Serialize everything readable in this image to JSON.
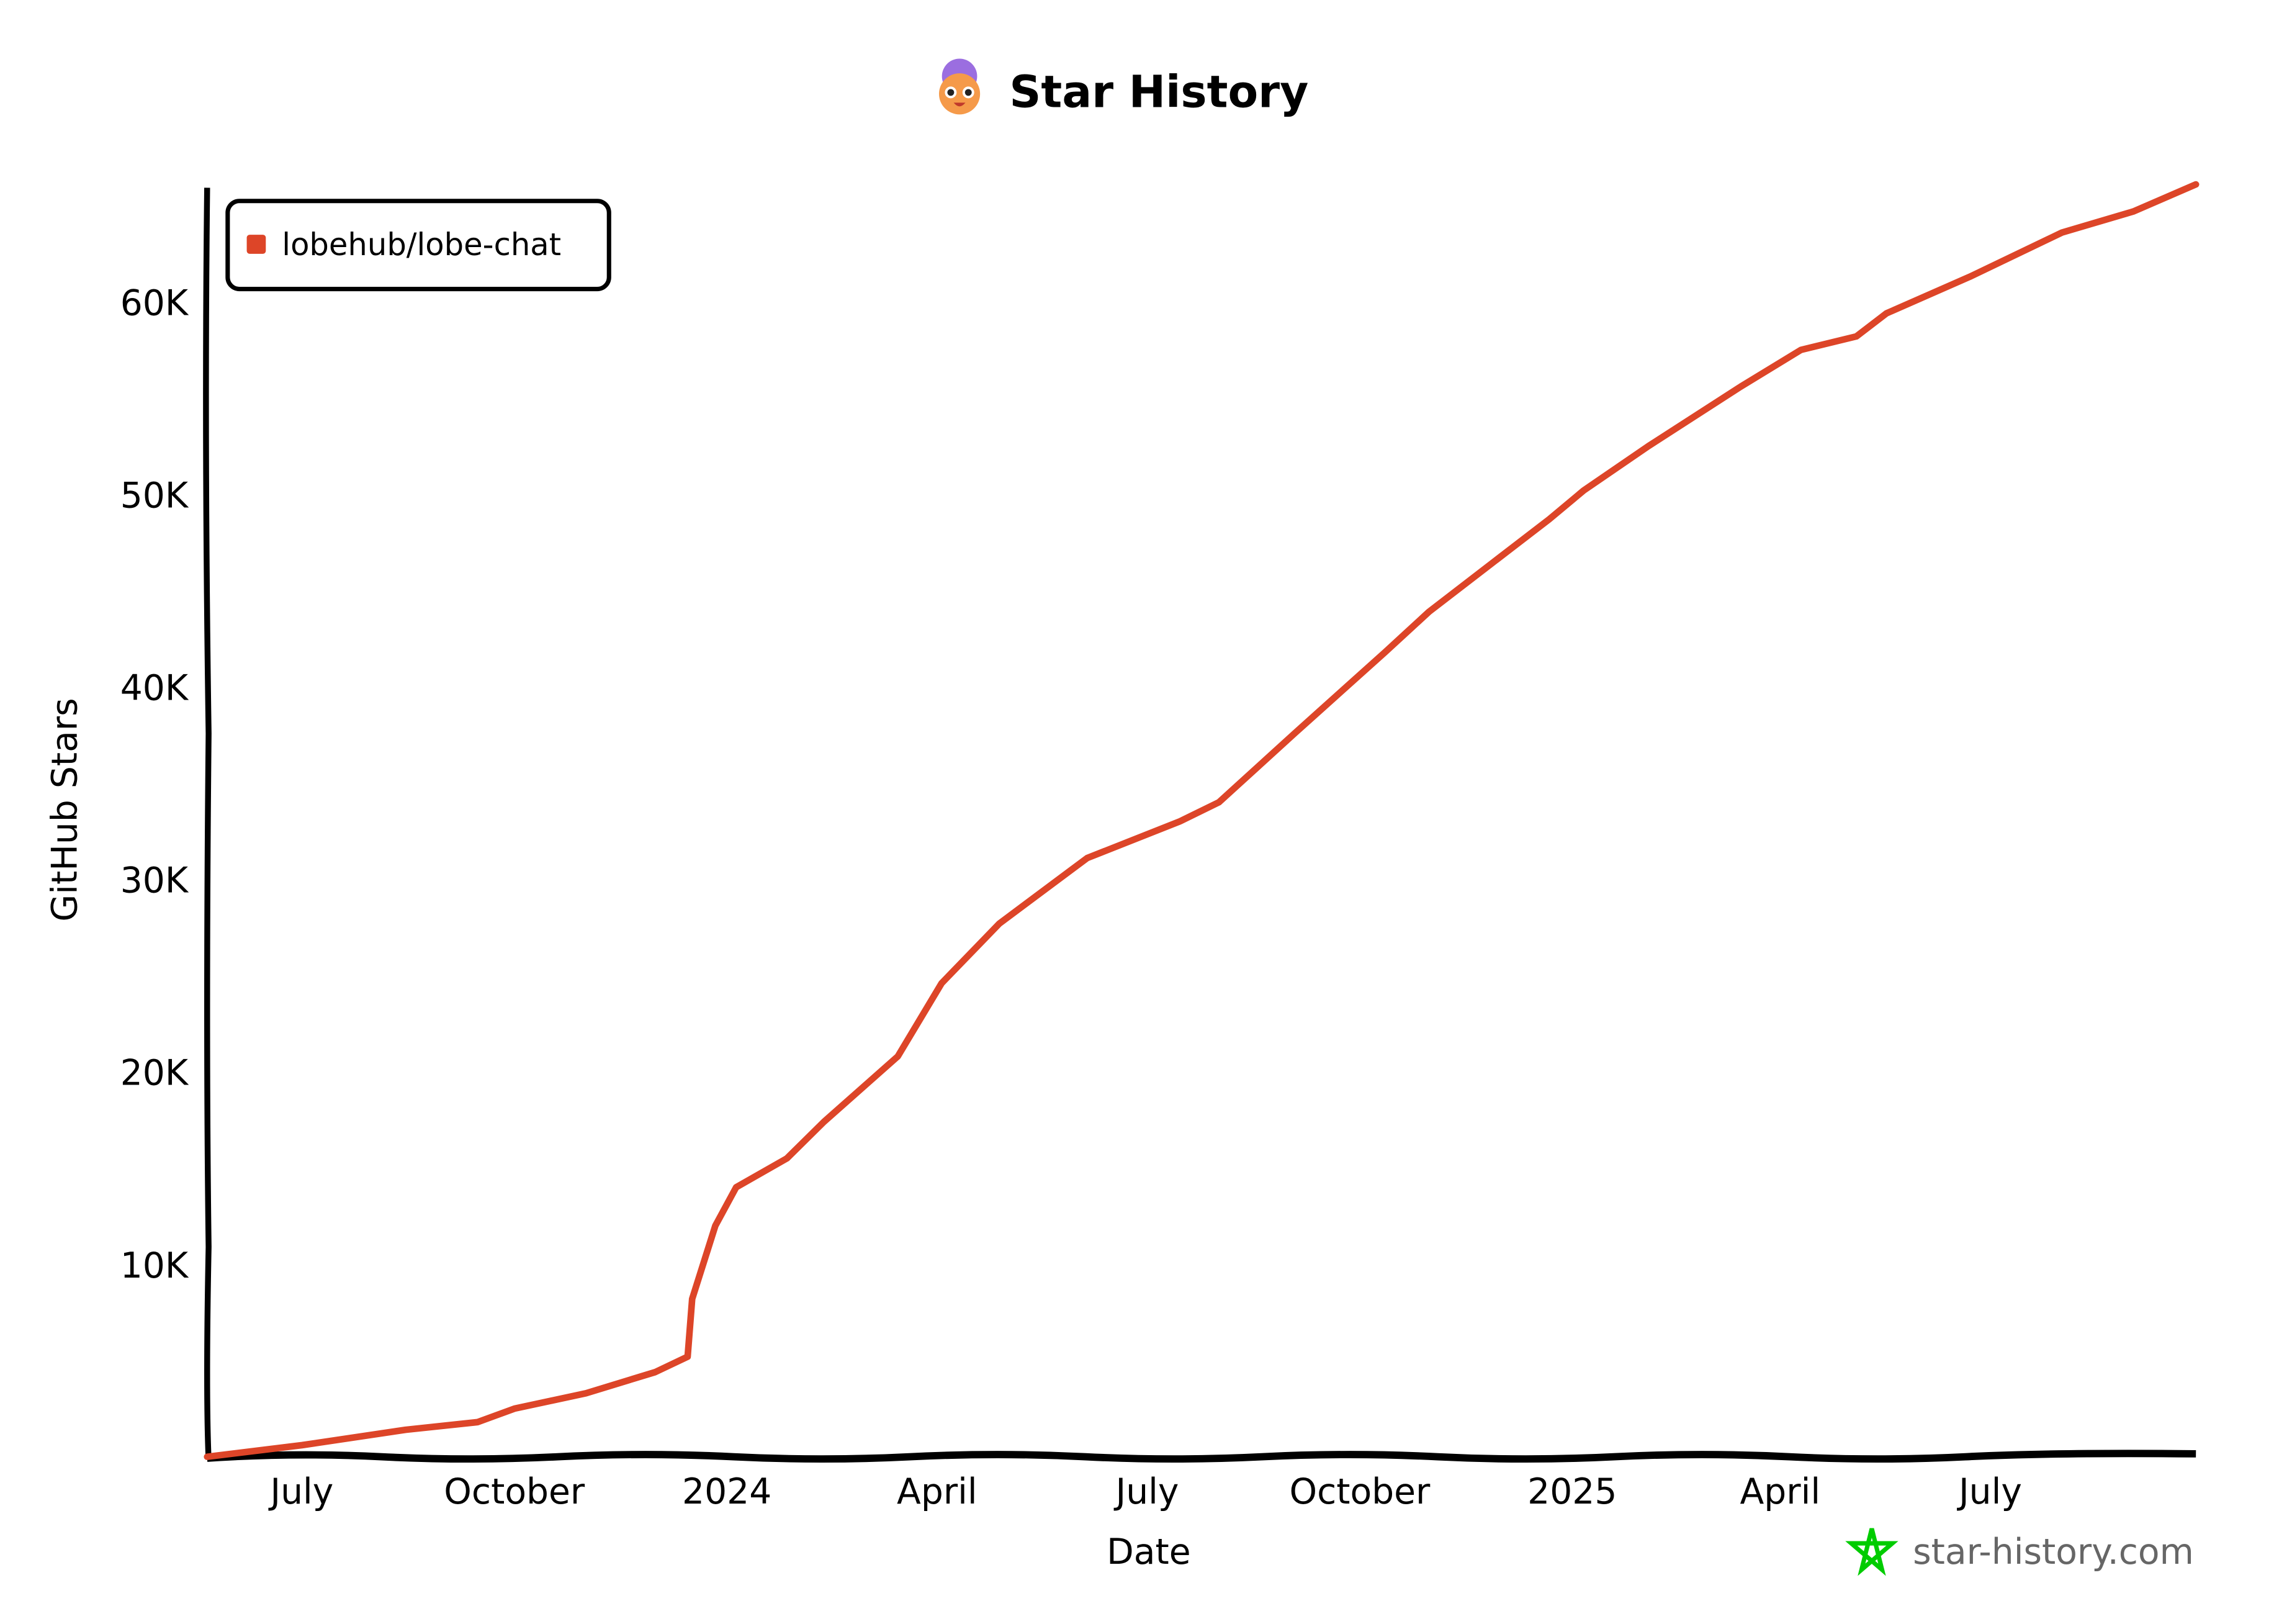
{
  "header": {
    "title": "Star History",
    "logo_icon": "star-history-mascot-icon"
  },
  "watermark": {
    "text": "star-history.com",
    "icon": "star-outline-icon",
    "icon_color": "#00cc00"
  },
  "chart_data": {
    "type": "line",
    "title": "Star History",
    "xlabel": "Date",
    "ylabel": "GitHub Stars",
    "xlim": [
      "2023-05-21",
      "2025-09-28"
    ],
    "ylim": [
      0,
      66000
    ],
    "grid": false,
    "legend_placement": "top-left",
    "x_ticks": [
      {
        "date": "2023-07-01",
        "label": "July"
      },
      {
        "date": "2023-10-01",
        "label": "October"
      },
      {
        "date": "2024-01-01",
        "label": "2024"
      },
      {
        "date": "2024-04-01",
        "label": "April"
      },
      {
        "date": "2024-07-01",
        "label": "July"
      },
      {
        "date": "2024-10-01",
        "label": "October"
      },
      {
        "date": "2025-01-01",
        "label": "2025"
      },
      {
        "date": "2025-04-01",
        "label": "April"
      },
      {
        "date": "2025-07-01",
        "label": "July"
      }
    ],
    "y_ticks": [
      {
        "value": 10000,
        "label": "10K"
      },
      {
        "value": 20000,
        "label": "20K"
      },
      {
        "value": 30000,
        "label": "30K"
      },
      {
        "value": 40000,
        "label": "40K"
      },
      {
        "value": 50000,
        "label": "50K"
      },
      {
        "value": 60000,
        "label": "60K"
      }
    ],
    "series": [
      {
        "name": "lobehub/lobe-chat",
        "color": "#dd4528",
        "points": [
          [
            "2023-05-21",
            0
          ],
          [
            "2023-07-01",
            600
          ],
          [
            "2023-08-15",
            1400
          ],
          [
            "2023-09-15",
            1800
          ],
          [
            "2023-10-01",
            2500
          ],
          [
            "2023-11-01",
            3300
          ],
          [
            "2023-12-01",
            4400
          ],
          [
            "2023-12-15",
            5200
          ],
          [
            "2023-12-17",
            8200
          ],
          [
            "2023-12-27",
            12000
          ],
          [
            "2024-01-05",
            14000
          ],
          [
            "2024-01-27",
            15500
          ],
          [
            "2024-02-12",
            17400
          ],
          [
            "2024-03-15",
            20800
          ],
          [
            "2024-04-03",
            24600
          ],
          [
            "2024-04-28",
            27700
          ],
          [
            "2024-06-05",
            31100
          ],
          [
            "2024-07-15",
            33000
          ],
          [
            "2024-08-01",
            34000
          ],
          [
            "2024-09-03",
            37600
          ],
          [
            "2024-10-12",
            41800
          ],
          [
            "2024-10-31",
            43900
          ],
          [
            "2024-11-27",
            46400
          ],
          [
            "2024-12-22",
            48700
          ],
          [
            "2025-01-06",
            50200
          ],
          [
            "2025-02-03",
            52500
          ],
          [
            "2025-03-15",
            55600
          ],
          [
            "2025-04-10",
            57500
          ],
          [
            "2025-05-04",
            58200
          ],
          [
            "2025-05-17",
            59400
          ],
          [
            "2025-06-22",
            61300
          ],
          [
            "2025-08-01",
            63600
          ],
          [
            "2025-09-01",
            64700
          ],
          [
            "2025-09-28",
            66100
          ]
        ]
      }
    ]
  }
}
